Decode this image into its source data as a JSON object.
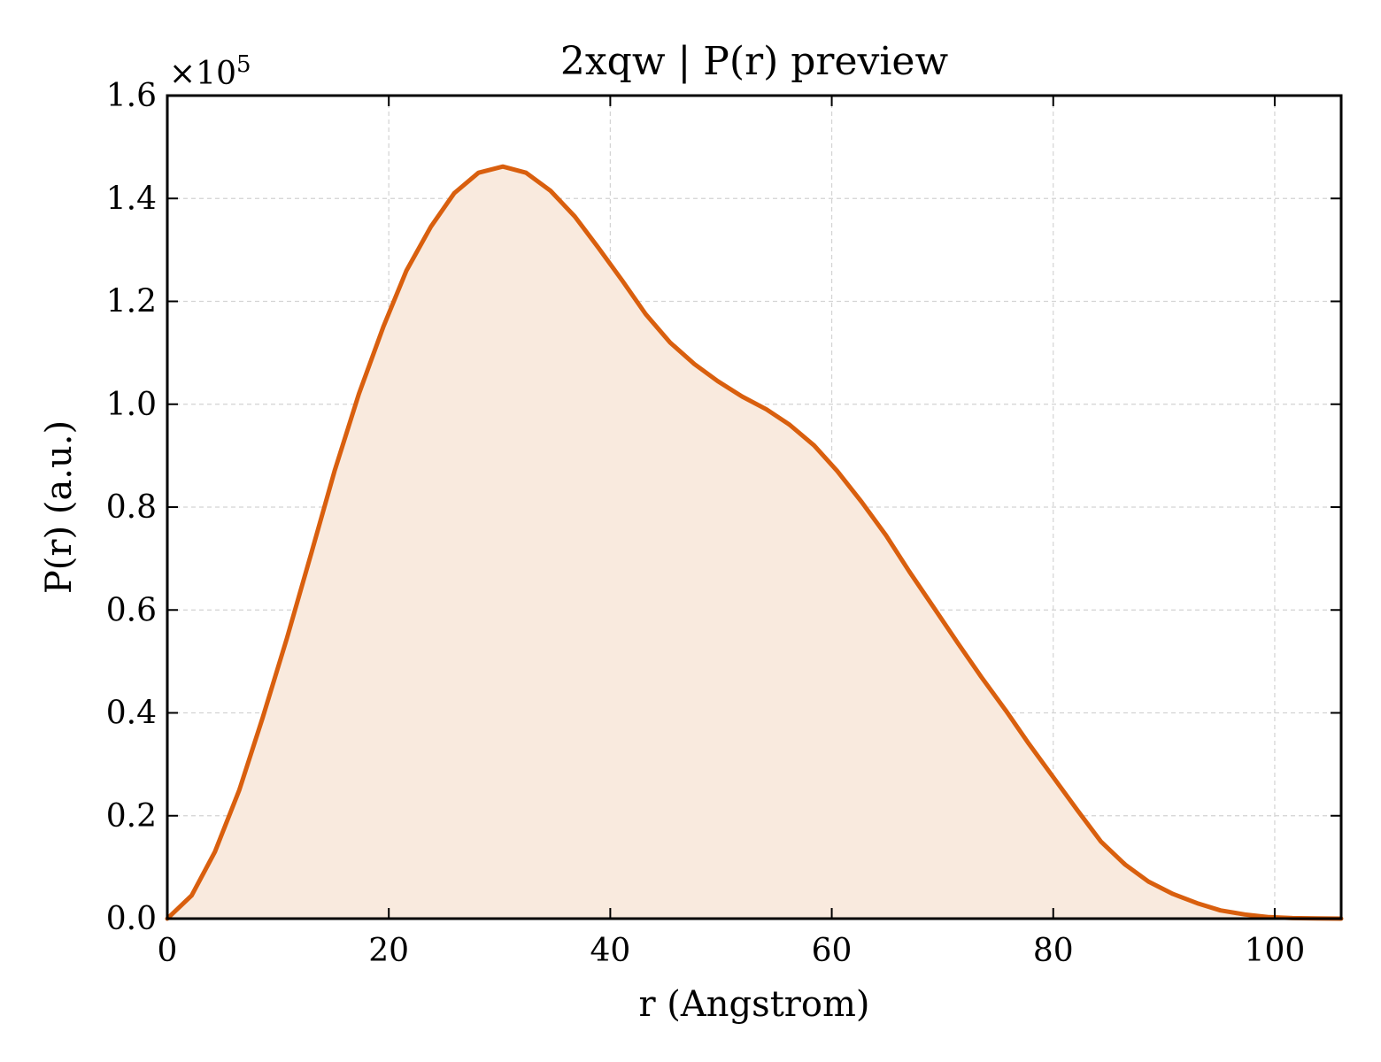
{
  "chart_data": {
    "type": "area",
    "title": "2xqw | P(r) preview",
    "xlabel": "r (Angstrom)",
    "ylabel": "P(r) (a.u.)",
    "y_multiplier_label": "×10",
    "y_multiplier_exp": "5",
    "xlim": [
      0,
      106
    ],
    "ylim": [
      0,
      1.6
    ],
    "xticks": [
      0,
      20,
      40,
      60,
      80,
      100
    ],
    "xtick_labels": [
      "0",
      "20",
      "40",
      "60",
      "80",
      "100"
    ],
    "yticks": [
      0.0,
      0.2,
      0.4,
      0.6,
      0.8,
      1.0,
      1.2,
      1.4,
      1.6
    ],
    "ytick_labels": [
      "0.0",
      "0.2",
      "0.4",
      "0.6",
      "0.8",
      "1.0",
      "1.2",
      "1.4",
      "1.6"
    ],
    "grid": true,
    "line_color": "#d95f0e",
    "fill_color": "#f9eade",
    "series": [
      {
        "x": [
          0,
          2.2,
          4.3,
          6.5,
          8.6,
          10.8,
          13.0,
          15.1,
          17.3,
          19.5,
          21.6,
          23.8,
          25.9,
          28.1,
          30.3,
          32.4,
          34.6,
          36.8,
          38.9,
          41.1,
          43.2,
          45.4,
          47.6,
          49.7,
          51.9,
          54.1,
          56.2,
          58.4,
          60.5,
          62.7,
          64.9,
          67.0,
          69.2,
          71.4,
          73.5,
          75.7,
          77.8,
          80.0,
          82.2,
          84.3,
          86.5,
          88.6,
          90.8,
          93.0,
          95.1,
          97.3,
          99.5,
          101.6,
          103.8,
          106.0
        ],
        "values": [
          0.0,
          0.045,
          0.13,
          0.25,
          0.39,
          0.545,
          0.71,
          0.87,
          1.02,
          1.15,
          1.26,
          1.345,
          1.41,
          1.45,
          1.462,
          1.45,
          1.415,
          1.365,
          1.305,
          1.24,
          1.175,
          1.12,
          1.078,
          1.045,
          1.015,
          0.99,
          0.96,
          0.92,
          0.87,
          0.81,
          0.745,
          0.675,
          0.605,
          0.535,
          0.47,
          0.405,
          0.34,
          0.275,
          0.21,
          0.15,
          0.105,
          0.072,
          0.048,
          0.03,
          0.016,
          0.008,
          0.003,
          0.001,
          0.0005,
          0.0
        ]
      }
    ]
  }
}
